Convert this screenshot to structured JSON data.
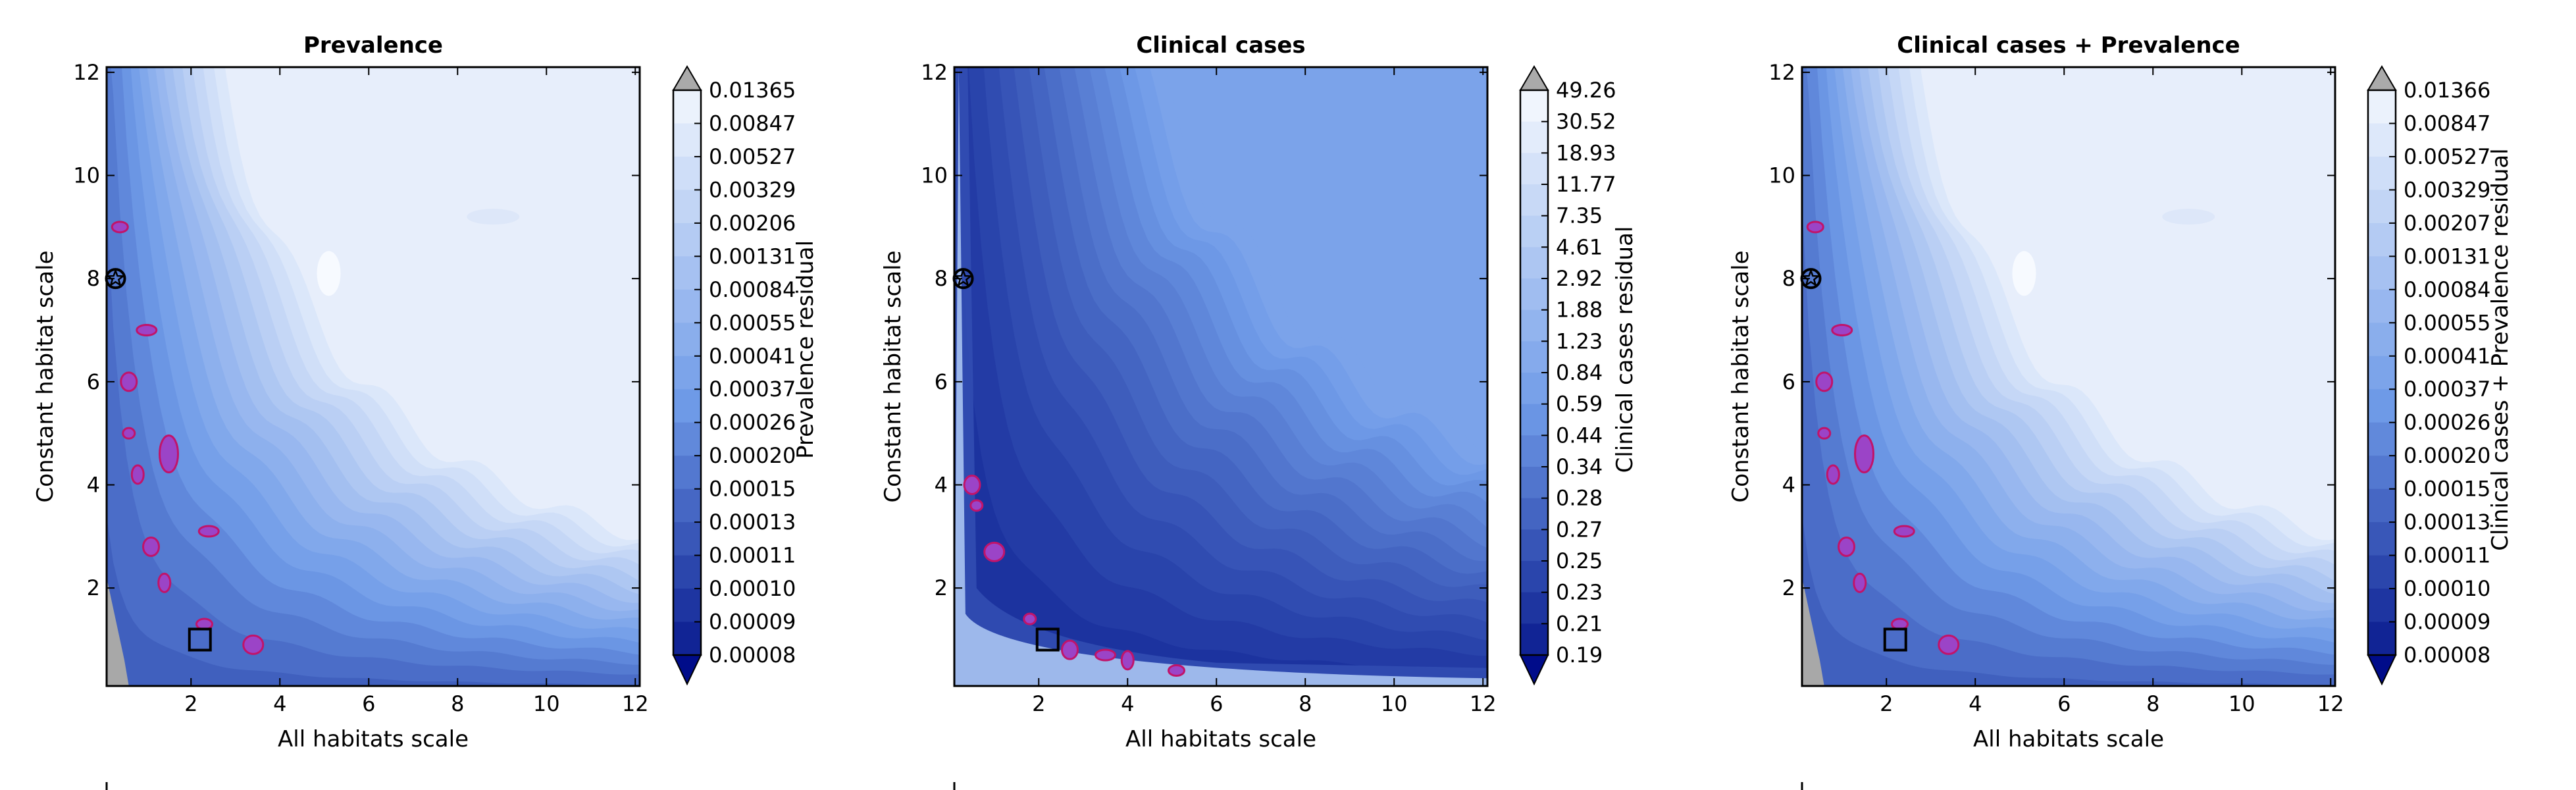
{
  "chart_data": [
    {
      "type": "contour",
      "title": "Prevalence",
      "xlabel": "All habitats scale",
      "ylabel": "Constant habitat scale",
      "xlim": [
        0.1,
        12.1
      ],
      "ylim": [
        0.1,
        12.1
      ],
      "xticks": [
        "2",
        "4",
        "6",
        "8",
        "10",
        "12"
      ],
      "yticks": [
        "2",
        "4",
        "6",
        "8",
        "10",
        "12"
      ],
      "colorbar_label": "Prevalence residual",
      "colorbar_levels": [
        "0.01365",
        "0.00847",
        "0.00527",
        "0.00329",
        "0.00206",
        "0.00131",
        "0.00084",
        "0.00055",
        "0.00041",
        "0.00037",
        "0.00026",
        "0.00020",
        "0.00015",
        "0.00013",
        "0.00011",
        "0.00010",
        "0.00009",
        "0.00008"
      ],
      "markers": [
        {
          "symbol": "star-circle",
          "x": 0.3,
          "y": 8.0
        },
        {
          "symbol": "square",
          "x": 2.2,
          "y": 1.0
        }
      ],
      "highlight_regions": [
        {
          "x": 1.5,
          "y": 4.6
        },
        {
          "x": 1.1,
          "y": 2.8
        },
        {
          "x": 2.4,
          "y": 3.1
        },
        {
          "x": 1.4,
          "y": 2.1
        },
        {
          "x": 2.3,
          "y": 1.3
        },
        {
          "x": 3.4,
          "y": 0.9
        },
        {
          "x": 0.6,
          "y": 5.0
        },
        {
          "x": 0.6,
          "y": 6.0
        },
        {
          "x": 1.0,
          "y": 7.0
        },
        {
          "x": 0.8,
          "y": 4.2
        },
        {
          "x": 0.4,
          "y": 9.0
        }
      ]
    },
    {
      "type": "contour",
      "title": "Clinical cases",
      "xlabel": "All habitats scale",
      "ylabel": "Constant habitat scale",
      "xlim": [
        0.1,
        12.1
      ],
      "ylim": [
        0.1,
        12.1
      ],
      "xticks": [
        "2",
        "4",
        "6",
        "8",
        "10",
        "12"
      ],
      "yticks": [
        "2",
        "4",
        "6",
        "8",
        "10",
        "12"
      ],
      "colorbar_label": "Clinical cases residual",
      "colorbar_levels": [
        "49.26",
        "30.52",
        "18.93",
        "11.77",
        "7.35",
        "4.61",
        "2.92",
        "1.88",
        "1.23",
        "0.84",
        "0.59",
        "0.44",
        "0.34",
        "0.28",
        "0.27",
        "0.25",
        "0.23",
        "0.21",
        "0.19"
      ],
      "markers": [
        {
          "symbol": "star-circle",
          "x": 0.3,
          "y": 8.0
        },
        {
          "symbol": "square",
          "x": 2.2,
          "y": 1.0
        }
      ],
      "highlight_regions": [
        {
          "x": 1.8,
          "y": 1.4
        },
        {
          "x": 2.7,
          "y": 0.8
        },
        {
          "x": 3.5,
          "y": 0.7
        },
        {
          "x": 4.0,
          "y": 0.6
        },
        {
          "x": 5.1,
          "y": 0.4
        },
        {
          "x": 1.0,
          "y": 2.7
        },
        {
          "x": 0.6,
          "y": 3.6
        },
        {
          "x": 0.5,
          "y": 4.0
        }
      ]
    },
    {
      "type": "contour",
      "title": "Clinical cases + Prevalence",
      "xlabel": "All habitats scale",
      "ylabel": "Constant habitat scale",
      "xlim": [
        0.1,
        12.1
      ],
      "ylim": [
        0.1,
        12.1
      ],
      "xticks": [
        "2",
        "4",
        "6",
        "8",
        "10",
        "12"
      ],
      "yticks": [
        "2",
        "4",
        "6",
        "8",
        "10",
        "12"
      ],
      "colorbar_label": "Clinical cases + Prevalence residual",
      "colorbar_levels": [
        "0.01366",
        "0.00847",
        "0.00527",
        "0.00329",
        "0.00207",
        "0.00131",
        "0.00084",
        "0.00055",
        "0.00041",
        "0.00037",
        "0.00026",
        "0.00020",
        "0.00015",
        "0.00013",
        "0.00011",
        "0.00010",
        "0.00009",
        "0.00008"
      ],
      "markers": [
        {
          "symbol": "star-circle",
          "x": 0.3,
          "y": 8.0
        },
        {
          "symbol": "square",
          "x": 2.2,
          "y": 1.0
        }
      ],
      "highlight_regions": [
        {
          "x": 1.5,
          "y": 4.6
        },
        {
          "x": 1.1,
          "y": 2.8
        },
        {
          "x": 2.4,
          "y": 3.1
        },
        {
          "x": 1.4,
          "y": 2.1
        },
        {
          "x": 2.3,
          "y": 1.3
        },
        {
          "x": 3.4,
          "y": 0.9
        },
        {
          "x": 0.6,
          "y": 5.0
        },
        {
          "x": 0.6,
          "y": 6.0
        },
        {
          "x": 1.0,
          "y": 7.0
        },
        {
          "x": 0.8,
          "y": 4.2
        },
        {
          "x": 0.4,
          "y": 9.0
        }
      ]
    }
  ],
  "colors": {
    "light": "#f0f5fd",
    "mid": "#6f9be8",
    "dark": "#0a1c8f",
    "highlight_fill": "#9b44c7",
    "highlight_edge": "#c0146a",
    "over": "#aaaaaa",
    "nan": "#a8a8a8"
  }
}
